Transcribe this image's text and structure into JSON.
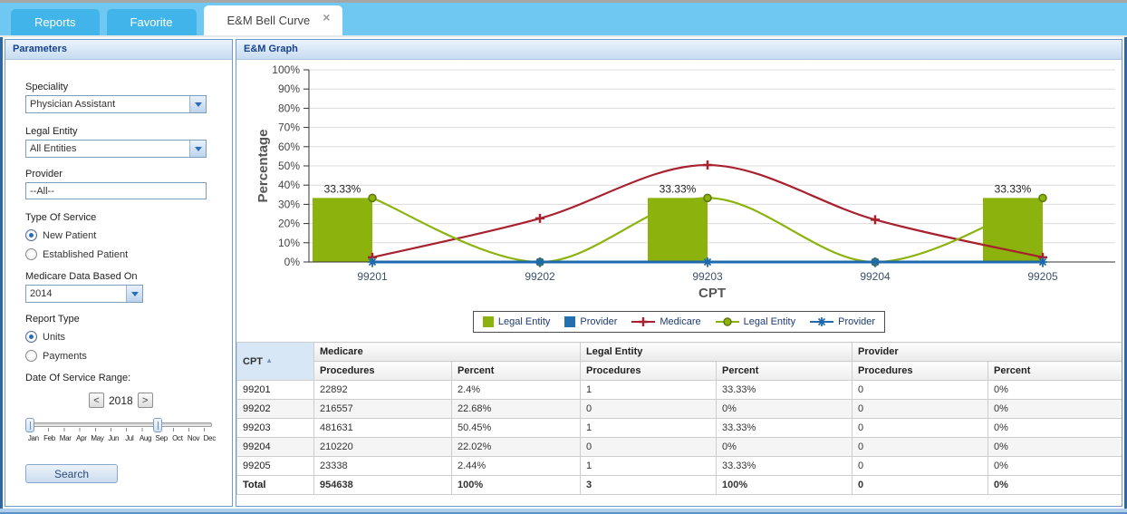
{
  "icons": {
    "close": "×",
    "sort_asc": "▲"
  },
  "tabs": [
    {
      "label": "Reports",
      "active": false
    },
    {
      "label": "Favorite",
      "active": false
    },
    {
      "label": "E&M Bell Curve",
      "active": true
    }
  ],
  "parameters": {
    "title": "Parameters",
    "speciality": {
      "label": "Speciality",
      "value": "Physician Assistant"
    },
    "legal_entity": {
      "label": "Legal Entity",
      "value": "All Entities"
    },
    "provider": {
      "label": "Provider",
      "value": "--All--"
    },
    "type_of_service": {
      "label": "Type Of Service",
      "options": [
        {
          "label": "New Patient",
          "selected": true
        },
        {
          "label": "Established Patient",
          "selected": false
        }
      ]
    },
    "medicare_data": {
      "label": "Medicare Data Based On",
      "value": "2014"
    },
    "report_type": {
      "label": "Report Type",
      "options": [
        {
          "label": "Units",
          "selected": true
        },
        {
          "label": "Payments",
          "selected": false
        }
      ]
    },
    "date_range": {
      "label": "Date Of Service Range:",
      "prev": "<",
      "year": "2018",
      "next": ">",
      "start_month": "Jan",
      "end_month": "Sep",
      "months": [
        "Jan",
        "Feb",
        "Mar",
        "Apr",
        "May",
        "Jun",
        "Jul",
        "Aug",
        "Sep",
        "Oct",
        "Nov",
        "Dec"
      ]
    },
    "search_label": "Search"
  },
  "graph_panel": {
    "title": "E&M Graph"
  },
  "chart_data": {
    "type": "combo",
    "categories": [
      "99201",
      "99202",
      "99203",
      "99204",
      "99205"
    ],
    "series": [
      {
        "name": "Legal Entity",
        "type": "bar",
        "color": "#8cb30d",
        "values": [
          33.33,
          0,
          33.33,
          0,
          33.33
        ],
        "labels": [
          "33.33%",
          "",
          "33.33%",
          "",
          "33.33%"
        ]
      },
      {
        "name": "Provider",
        "type": "bar",
        "color": "#2270b0",
        "values": [
          0,
          0,
          0,
          0,
          0
        ],
        "labels": [
          "",
          "",
          "",
          "",
          ""
        ]
      },
      {
        "name": "Medicare",
        "type": "line",
        "color": "#a8212e",
        "marker": "plus",
        "values": [
          2.4,
          22.68,
          50.45,
          22.02,
          2.44
        ]
      },
      {
        "name": "Legal Entity",
        "type": "line",
        "color": "#8cb30d",
        "marker": "circle",
        "values": [
          33.33,
          0,
          33.33,
          0,
          33.33
        ]
      },
      {
        "name": "Provider",
        "type": "line",
        "color": "#1e6aad",
        "marker": "asterisk",
        "values": [
          0,
          0,
          0,
          0,
          0
        ]
      }
    ],
    "xlabel": "CPT",
    "ylabel": "Percentage",
    "ylim": [
      0,
      100
    ],
    "ytick_step": 10,
    "ytick_suffix": "%",
    "grid": true,
    "legend_position": "bottom"
  },
  "table": {
    "cpt_header": "CPT",
    "groups": [
      "Medicare",
      "Legal Entity",
      "Provider"
    ],
    "sub_headers": [
      "Procedures",
      "Percent"
    ],
    "rows": [
      {
        "cpt": "99201",
        "cells": [
          "22892",
          "2.4%",
          "1",
          "33.33%",
          "0",
          "0%"
        ]
      },
      {
        "cpt": "99202",
        "cells": [
          "216557",
          "22.68%",
          "0",
          "0%",
          "0",
          "0%"
        ]
      },
      {
        "cpt": "99203",
        "cells": [
          "481631",
          "50.45%",
          "1",
          "33.33%",
          "0",
          "0%"
        ]
      },
      {
        "cpt": "99204",
        "cells": [
          "210220",
          "22.02%",
          "0",
          "0%",
          "0",
          "0%"
        ]
      },
      {
        "cpt": "99205",
        "cells": [
          "23338",
          "2.44%",
          "1",
          "33.33%",
          "0",
          "0%"
        ]
      },
      {
        "cpt": "Total",
        "cells": [
          "954638",
          "100%",
          "3",
          "100%",
          "0",
          "0%"
        ]
      }
    ]
  }
}
